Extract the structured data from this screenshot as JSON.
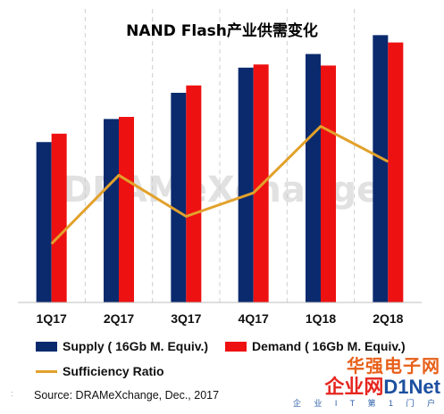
{
  "chart_data": {
    "type": "bar",
    "title": "NAND Flash产业供需变化",
    "categories": [
      "1Q17",
      "2Q17",
      "3Q17",
      "4Q17",
      "1Q18",
      "2Q18"
    ],
    "series": [
      {
        "name": "Supply ( 16Gb M. Equiv.)",
        "type": "bar",
        "color": "#0b2a6e",
        "values": [
          153,
          175,
          200,
          224,
          237,
          255
        ]
      },
      {
        "name": "Demand ( 16Gb M. Equiv.)",
        "type": "bar",
        "color": "#ee1111",
        "values": [
          161,
          177,
          207,
          227,
          226,
          248
        ]
      },
      {
        "name": "Sufficiency Ratio",
        "type": "line",
        "color": "#e2a12b",
        "values": [
          -2.0,
          1.5,
          -0.6,
          0.6,
          4.0,
          2.2
        ]
      }
    ],
    "ylim": [
      0,
      280
    ],
    "y2lim": [
      -5,
      10
    ],
    "grid": "vertical-dashed",
    "legend_position": "bottom"
  },
  "watermark": {
    "center": "DRAMeXchange",
    "top_cn": "华强电子网",
    "main_cn": "企业网",
    "main_en": "D1Net",
    "sub": "企 业 I T 第 1 门 户"
  },
  "source": "Source: DRAMeXchange, Dec., 2017"
}
